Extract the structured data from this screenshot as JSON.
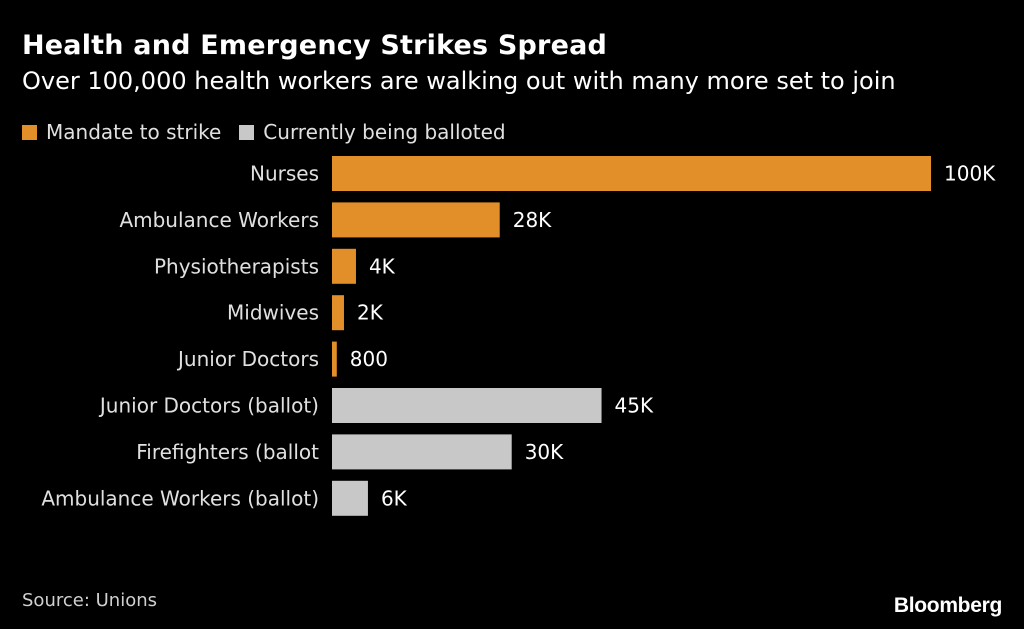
{
  "chart_data": {
    "type": "bar",
    "orientation": "horizontal",
    "title": "Health and Emergency Strikes Spread",
    "subtitle": "Over 100,000 health workers are walking out with many more set to join",
    "legend": [
      {
        "name": "Mandate to strike",
        "color": "#e38f29"
      },
      {
        "name": "Currently being balloted",
        "color": "#c8c8c8"
      }
    ],
    "categories": [
      "Nurses",
      "Ambulance Workers",
      "Physiotherapists",
      "Midwives",
      "Junior Doctors",
      "Junior Doctors (ballot)",
      "Firefighters (ballot",
      "Ambulance Workers (ballot)"
    ],
    "values": [
      100000,
      28000,
      4000,
      2000,
      800,
      45000,
      30000,
      6000
    ],
    "value_labels": [
      "100K",
      "28K",
      "4K",
      "2K",
      "800",
      "45K",
      "30K",
      "6K"
    ],
    "series_index": [
      0,
      0,
      0,
      0,
      0,
      1,
      1,
      1
    ],
    "xlim": [
      0,
      100000
    ],
    "xlabel": "",
    "ylabel": "",
    "grid": false
  },
  "source": "Source: Unions",
  "brand": "Bloomberg"
}
